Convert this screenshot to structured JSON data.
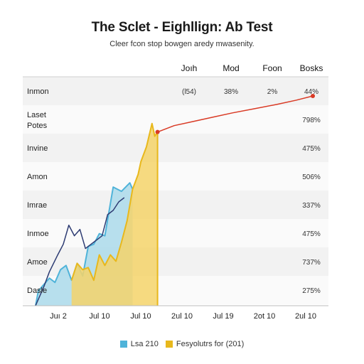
{
  "title": "The Sclet - Eighllign: Ab Test",
  "subtitle": "Cleer fcon stop bowgen aredy mwasenity.",
  "colors": {
    "area_blue": "#a6d8ea",
    "line_blue": "#4fb3d9",
    "area_yellow": "#f5d46a",
    "line_yellow": "#e8b81c",
    "line_navy": "#2e3c73",
    "line_red": "#d93a25",
    "band_a": "#f2f2f2",
    "band_b": "#fafafa"
  },
  "chart_data": {
    "type": "area",
    "columns": [
      "Joıh",
      "Mod",
      "Foon",
      "Bosks"
    ],
    "rows": [
      {
        "label": "Inmon",
        "cells": [
          "(l54)",
          "38%",
          "2%",
          "44%"
        ]
      },
      {
        "label": "Laset Potes",
        "cells": [
          "",
          "",
          "",
          "798%"
        ]
      },
      {
        "label": "Invine",
        "cells": [
          "",
          "",
          "",
          "475%"
        ]
      },
      {
        "label": "Amon",
        "cells": [
          "",
          "",
          "",
          "506%"
        ]
      },
      {
        "label": "Imrae",
        "cells": [
          "",
          "",
          "",
          "337%"
        ]
      },
      {
        "label": "Inmoe",
        "cells": [
          "",
          "",
          "",
          "475%"
        ]
      },
      {
        "label": "Amoe",
        "cells": [
          "",
          "",
          "",
          "737%"
        ]
      },
      {
        "label": "Dasle",
        "cells": [
          "",
          "",
          "",
          "275%"
        ]
      }
    ],
    "xlabels": [
      "Juı 2",
      "Jul 10",
      "Jul 10",
      "2ul 10",
      "Jul 19",
      "2ot 10",
      "2ul 10"
    ],
    "xlim": [
      0,
      100
    ],
    "ylim": [
      0,
      100
    ],
    "series": [
      {
        "name": "Lsa 210",
        "kind": "area",
        "color_key": "area_blue",
        "x": [
          0,
          1,
          3,
          5,
          7,
          9,
          11,
          13,
          15,
          17,
          19,
          21,
          23,
          25,
          28,
          31,
          34,
          35
        ],
        "y": [
          0,
          7,
          10,
          13,
          11,
          17,
          19,
          12,
          20,
          14,
          28,
          29,
          34,
          33,
          56,
          54,
          58,
          55
        ]
      },
      {
        "name": "Fesyolutrs for (201)",
        "kind": "area",
        "color_key": "area_yellow",
        "x": [
          13,
          15,
          17,
          19,
          21,
          23,
          25,
          27,
          29,
          31,
          33,
          35,
          37,
          38,
          40,
          42,
          43,
          44
        ],
        "y": [
          12,
          20,
          17,
          18,
          12,
          24,
          19,
          24,
          21,
          30,
          40,
          55,
          62,
          68,
          75,
          86,
          80,
          82
        ]
      },
      {
        "kind": "line",
        "color_key": "line_navy",
        "x": [
          0,
          3,
          5,
          8,
          10,
          12,
          14,
          16,
          18,
          21,
          24,
          26,
          28,
          30,
          32
        ],
        "y": [
          0,
          9,
          16,
          24,
          29,
          38,
          33,
          36,
          27,
          30,
          33,
          43,
          45,
          49,
          51
        ]
      },
      {
        "kind": "line",
        "color_key": "line_red",
        "x": [
          44,
          50,
          57,
          64,
          71,
          79,
          87,
          94,
          100
        ],
        "y": [
          82,
          85,
          87,
          89,
          91,
          93,
          95,
          97,
          99
        ]
      }
    ],
    "legend": [
      {
        "label": "Lsa 210",
        "color_key": "line_blue"
      },
      {
        "label": "Fesyolutrs for (201)",
        "color_key": "line_yellow"
      }
    ]
  }
}
